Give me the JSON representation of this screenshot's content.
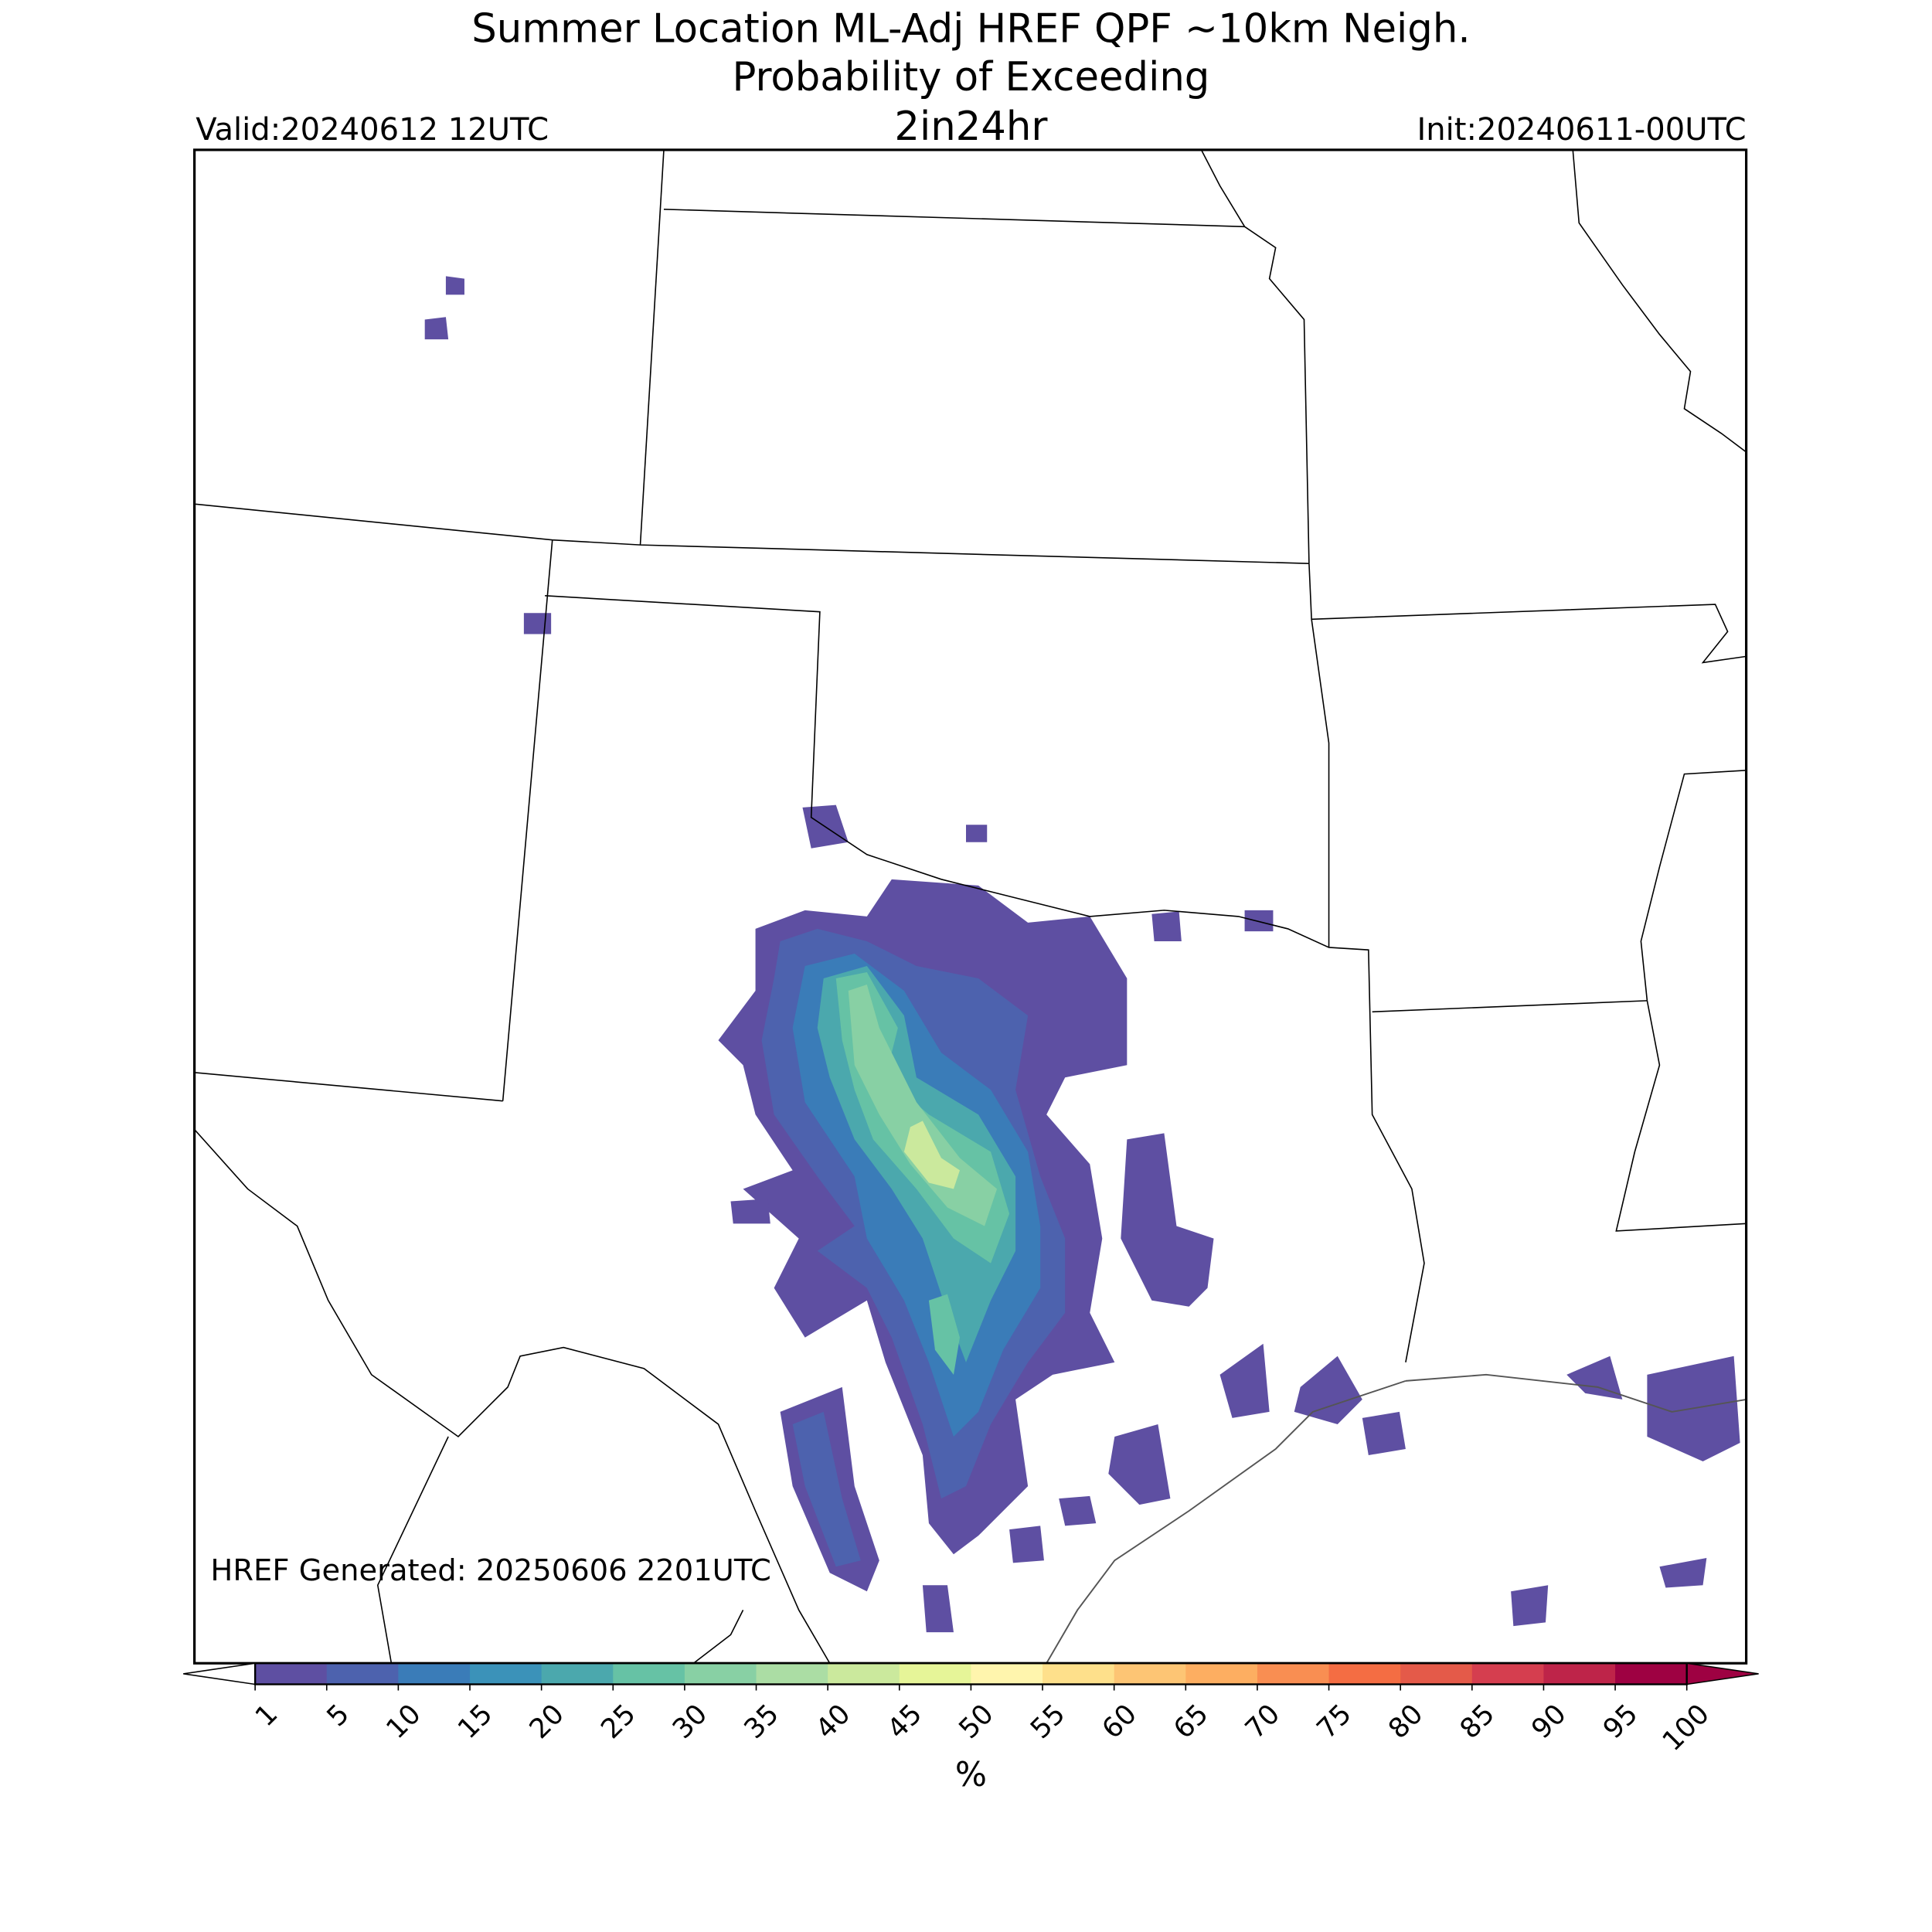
{
  "header": {
    "title": "Summer Location ML-Adj HREF QPF ~10km Neigh.",
    "subtitle": "Probability of Exceeding",
    "valid": "Valid:20240612 12UTC",
    "threshold": "2in24hr",
    "init": "Init:20240611-00UTC"
  },
  "map": {
    "footer": "HREF Generated: 20250606 2201UTC"
  },
  "colorbar": {
    "ticks": [
      1,
      5,
      10,
      15,
      20,
      25,
      30,
      35,
      40,
      45,
      50,
      55,
      60,
      65,
      70,
      75,
      80,
      85,
      90,
      95,
      100
    ],
    "colors": [
      "#5e4fa2",
      "#4d62ae",
      "#3a7cb8",
      "#3b92b9",
      "#4ba8ad",
      "#66c2a5",
      "#88d0a4",
      "#abdda4",
      "#cbe99d",
      "#e6f598",
      "#fff5ad",
      "#fee08b",
      "#fdc574",
      "#fdae61",
      "#f98e52",
      "#f46d43",
      "#e45a49",
      "#d53e4f",
      "#be2449",
      "#9e0142"
    ],
    "label": "%"
  }
}
